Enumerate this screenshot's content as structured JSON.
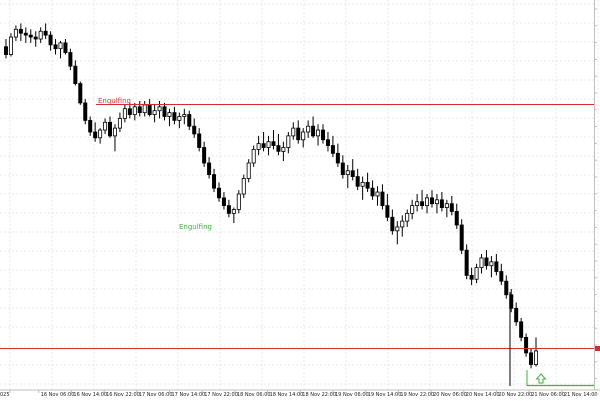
{
  "chart_data": {
    "type": "candlestick",
    "title": "",
    "xlabel": "",
    "ylabel": "",
    "grid": true,
    "x_tick_labels": [
      "025",
      "16 Nov 06:00",
      "16 Nov 14:00",
      "16 Nov 22:00",
      "17 Nov 06:00",
      "17 Nov 14:00",
      "17 Nov 22:00",
      "18 Nov 06:00",
      "18 Nov 14:00",
      "18 Nov 22:00",
      "19 Nov 06:00",
      "19 Nov 14:00",
      "19 Nov 22:00",
      "20 Nov 06:00",
      "20 Nov 14:00",
      "20 Nov 22:00",
      "21 Nov 06:00",
      "21 Nov 14:00"
    ],
    "annotations": [
      {
        "text": "Engulfing",
        "kind": "bearing-pattern",
        "color": "#d84040"
      },
      {
        "text": "Engulfing",
        "kind": "bullish-pattern",
        "color": "#3db43d"
      }
    ],
    "levels": [
      {
        "name": "resistance-line",
        "color": "#d62b2b"
      },
      {
        "name": "price-line",
        "color": "#d62b2b"
      },
      {
        "name": "support-line",
        "color": "#3db43d"
      }
    ],
    "colors": {
      "bull": "#ffffff",
      "bear": "#000000",
      "wick": "#000000",
      "grid": "#e9e9e9"
    },
    "candles": [
      [
        352,
        356,
        346,
        348
      ],
      [
        348,
        359,
        347,
        357
      ],
      [
        357,
        363,
        355,
        361
      ],
      [
        361,
        364,
        355,
        359
      ],
      [
        359,
        362,
        354,
        358
      ],
      [
        358,
        361,
        354,
        357
      ],
      [
        357,
        360,
        352,
        356
      ],
      [
        356,
        362,
        354,
        360
      ],
      [
        360,
        364,
        356,
        358
      ],
      [
        358,
        360,
        350,
        353
      ],
      [
        353,
        356,
        348,
        351
      ],
      [
        351,
        355,
        346,
        354
      ],
      [
        354,
        356,
        348,
        349
      ],
      [
        349,
        351,
        340,
        342
      ],
      [
        342,
        345,
        332,
        333
      ],
      [
        333,
        334,
        322,
        323
      ],
      [
        323,
        325,
        312,
        314
      ],
      [
        314,
        316,
        306,
        308
      ],
      [
        308,
        313,
        303,
        305
      ],
      [
        305,
        310,
        302,
        309
      ],
      [
        309,
        315,
        307,
        313
      ],
      [
        313,
        316,
        305,
        306
      ],
      [
        306,
        312,
        298,
        310
      ],
      [
        310,
        318,
        308,
        315
      ],
      [
        315,
        322,
        313,
        320
      ],
      [
        320,
        323,
        315,
        317
      ],
      [
        317,
        323,
        314,
        321
      ],
      [
        321,
        324,
        316,
        318
      ],
      [
        318,
        324,
        316,
        322
      ],
      [
        322,
        325,
        316,
        317
      ],
      [
        317,
        322,
        313,
        319
      ],
      [
        319,
        324,
        315,
        321
      ],
      [
        321,
        323,
        314,
        316
      ],
      [
        316,
        320,
        311,
        318
      ],
      [
        318,
        321,
        312,
        314
      ],
      [
        314,
        318,
        310,
        316
      ],
      [
        316,
        320,
        312,
        317
      ],
      [
        317,
        319,
        309,
        311
      ],
      [
        311,
        315,
        305,
        307
      ],
      [
        307,
        310,
        298,
        300
      ],
      [
        300,
        303,
        290,
        292
      ],
      [
        292,
        295,
        284,
        286
      ],
      [
        286,
        289,
        277,
        279
      ],
      [
        279,
        282,
        272,
        274
      ],
      [
        274,
        277,
        268,
        270
      ],
      [
        270,
        273,
        264,
        266
      ],
      [
        266,
        269,
        261,
        268
      ],
      [
        268,
        278,
        266,
        276
      ],
      [
        276,
        286,
        274,
        284
      ],
      [
        284,
        294,
        282,
        292
      ],
      [
        292,
        301,
        290,
        299
      ],
      [
        299,
        306,
        296,
        302
      ],
      [
        302,
        308,
        298,
        300
      ],
      [
        300,
        306,
        296,
        303
      ],
      [
        303,
        309,
        299,
        301
      ],
      [
        301,
        307,
        296,
        298
      ],
      [
        298,
        303,
        293,
        300
      ],
      [
        300,
        308,
        297,
        306
      ],
      [
        306,
        313,
        304,
        310
      ],
      [
        310,
        314,
        302,
        304
      ],
      [
        304,
        310,
        300,
        308
      ],
      [
        308,
        314,
        305,
        311
      ],
      [
        311,
        316,
        305,
        306
      ],
      [
        306,
        312,
        301,
        309
      ],
      [
        309,
        312,
        302,
        304
      ],
      [
        304,
        308,
        298,
        301
      ],
      [
        301,
        306,
        295,
        297
      ],
      [
        297,
        302,
        290,
        292
      ],
      [
        292,
        296,
        284,
        286
      ],
      [
        286,
        291,
        279,
        288
      ],
      [
        288,
        294,
        283,
        285
      ],
      [
        285,
        289,
        278,
        280
      ],
      [
        280,
        285,
        273,
        282
      ],
      [
        282,
        287,
        277,
        279
      ],
      [
        279,
        283,
        273,
        275
      ],
      [
        275,
        280,
        270,
        277
      ],
      [
        277,
        281,
        268,
        270
      ],
      [
        270,
        276,
        262,
        264
      ],
      [
        264,
        268,
        255,
        257
      ],
      [
        257,
        262,
        250,
        259
      ],
      [
        259,
        265,
        254,
        262
      ],
      [
        262,
        268,
        259,
        266
      ],
      [
        266,
        273,
        263,
        270
      ],
      [
        270,
        276,
        267,
        272
      ],
      [
        272,
        278,
        268,
        270
      ],
      [
        270,
        276,
        266,
        274
      ],
      [
        274,
        278,
        269,
        271
      ],
      [
        271,
        276,
        266,
        273
      ],
      [
        273,
        277,
        267,
        269
      ],
      [
        269,
        273,
        264,
        271
      ],
      [
        271,
        275,
        265,
        267
      ],
      [
        267,
        271,
        258,
        260
      ],
      [
        260,
        263,
        245,
        247
      ],
      [
        247,
        250,
        232,
        234
      ],
      [
        234,
        238,
        229,
        232
      ],
      [
        232,
        240,
        230,
        238
      ],
      [
        238,
        245,
        235,
        243
      ],
      [
        243,
        247,
        237,
        239
      ],
      [
        239,
        244,
        233,
        241
      ],
      [
        241,
        245,
        234,
        236
      ],
      [
        236,
        240,
        229,
        231
      ],
      [
        231,
        234,
        222,
        224
      ],
      [
        224,
        227,
        215,
        217
      ],
      [
        217,
        220,
        208,
        210
      ],
      [
        210,
        212,
        200,
        202
      ],
      [
        202,
        204,
        192,
        194
      ],
      [
        194,
        196,
        186,
        188
      ],
      [
        188,
        202,
        187,
        195
      ]
    ]
  }
}
